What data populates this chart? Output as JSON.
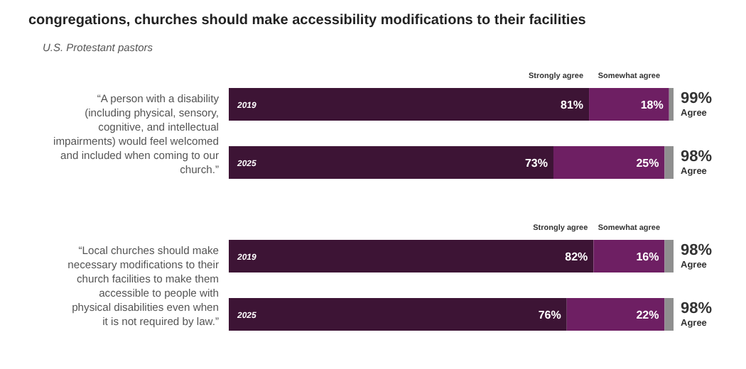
{
  "chart_data": {
    "type": "bar",
    "orientation": "horizontal",
    "stacked": true,
    "title": "congregations, churches should make accessibility modifications to their facilities",
    "subtitle": "U.S. Protestant pastors",
    "annotations": [
      "“A person with a disability (including physical, sensory, cognitive, and intellectual impairments) would feel welcomed and included when coming to our church.”",
      "“Local churches should make necessary modifications to their church facilities to make them accessible to people with physical disabilities even when it is not required by law.”"
    ],
    "categories": [
      "2019",
      "2025",
      "2019",
      "2025"
    ],
    "xlim": [
      0,
      100
    ],
    "tick_labels": "y",
    "legend": "top",
    "series": [
      {
        "name": "Strongly agree",
        "color": "#3d1435",
        "values": [
          81,
          73,
          82,
          76
        ],
        "value_labels": [
          "81%",
          "73%",
          "82%",
          "76%"
        ]
      },
      {
        "name": "Somewhat agree",
        "color": "#6e1f63",
        "values": [
          18,
          25,
          16,
          22
        ],
        "value_labels": [
          "18%",
          "25%",
          "16%",
          "22%"
        ]
      },
      {
        "color": "#8f8f8f",
        "values": [
          1,
          2,
          2,
          2
        ]
      }
    ],
    "totals": [
      "99% Agree",
      "98% Agree",
      "98% Agree",
      "98% Agree"
    ]
  }
}
